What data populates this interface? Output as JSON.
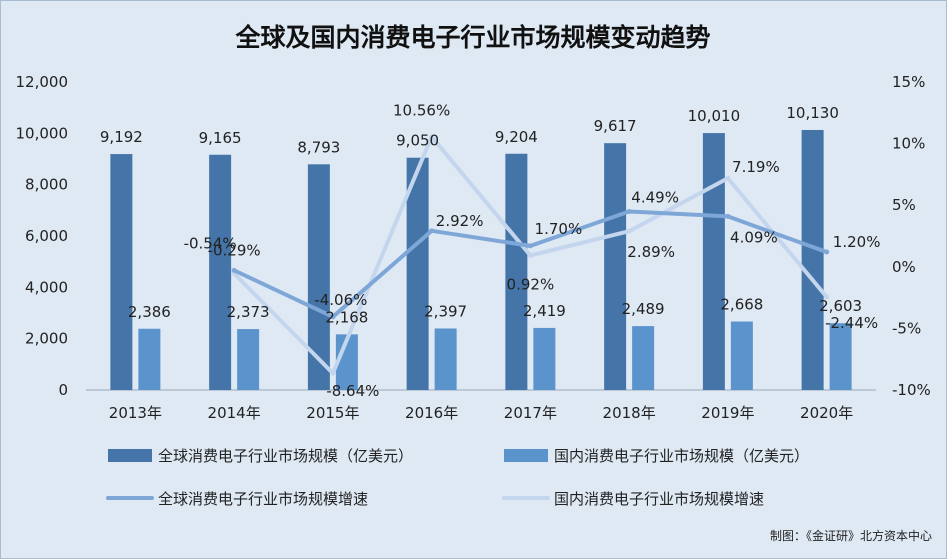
{
  "chart_data": {
    "type": "bar+line",
    "title": "全球及国内消费电子行业市场规模变动趋势",
    "categories": [
      "2013年",
      "2014年",
      "2015年",
      "2016年",
      "2017年",
      "2018年",
      "2019年",
      "2020年"
    ],
    "series": [
      {
        "name": "全球消费电子行业市场规模（亿美元）",
        "type": "bar",
        "axis": "left",
        "color": "#4575a8",
        "values": [
          9192,
          9165,
          8793,
          9050,
          9204,
          9617,
          10010,
          10130
        ],
        "labels": [
          "9,192",
          "9,165",
          "8,793",
          "9,050",
          "9,204",
          "9,617",
          "10,010",
          "10,130"
        ]
      },
      {
        "name": "国内消费电子行业市场规模（亿美元）",
        "type": "bar",
        "axis": "left",
        "color": "#5b93cc",
        "values": [
          2386,
          2373,
          2168,
          2397,
          2419,
          2489,
          2668,
          2603
        ],
        "labels": [
          "2,386",
          "2,373",
          "2,168",
          "2,397",
          "2,419",
          "2,489",
          "2,668",
          "2,603"
        ]
      },
      {
        "name": "全球消费电子行业市场规模增速",
        "type": "line",
        "axis": "right",
        "color": "#7ea7d8",
        "values": [
          null,
          -0.29,
          -4.06,
          2.92,
          1.7,
          4.49,
          4.09,
          1.2
        ],
        "labels": [
          "",
          "-0.29%",
          "-4.06%",
          "2.92%",
          "1.70%",
          "4.49%",
          "4.09%",
          "1.20%"
        ]
      },
      {
        "name": "国内消费电子行业市场规模增速",
        "type": "line",
        "axis": "right",
        "color": "#c3d6ee",
        "values": [
          null,
          -0.54,
          -8.64,
          10.56,
          0.92,
          2.89,
          7.19,
          -2.44
        ],
        "labels": [
          "",
          "-0.54%",
          "-8.64%",
          "10.56%",
          "0.92%",
          "2.89%",
          "7.19%",
          "-2.44%"
        ]
      }
    ],
    "y_left": {
      "lim": [
        0,
        12000
      ],
      "ticks": [
        0,
        2000,
        4000,
        6000,
        8000,
        10000,
        12000
      ],
      "tick_labels": [
        "0",
        "2,000",
        "4,000",
        "6,000",
        "8,000",
        "10,000",
        "12,000"
      ]
    },
    "y_right": {
      "lim": [
        -10,
        15
      ],
      "ticks": [
        -10,
        -5,
        0,
        5,
        10,
        15
      ],
      "tick_labels": [
        "-10%",
        "-5%",
        "0%",
        "5%",
        "10%",
        "15%"
      ]
    },
    "grid": false,
    "legend_position": "bottom",
    "source": "制图：《金证研》北方资本中心"
  }
}
